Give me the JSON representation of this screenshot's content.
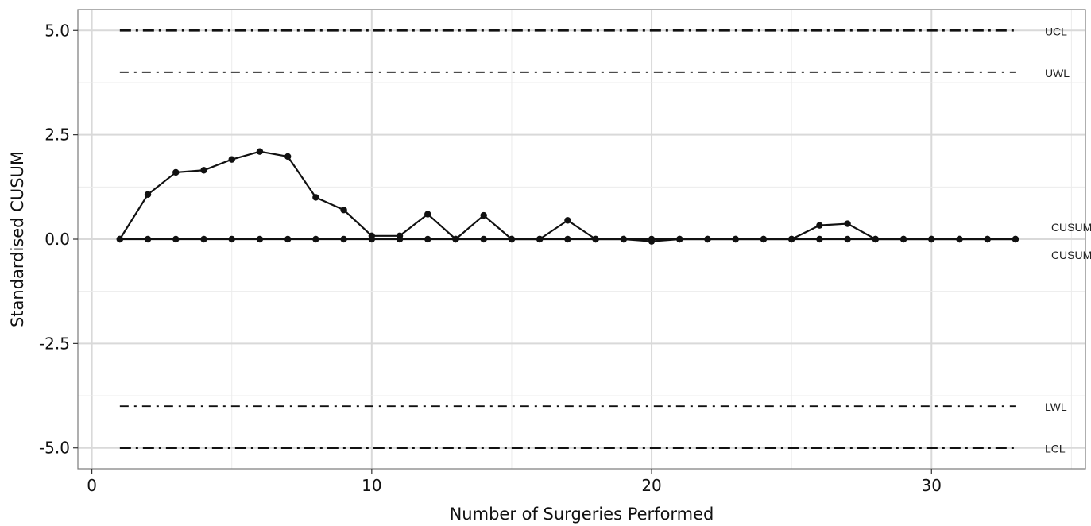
{
  "chart_data": {
    "type": "line",
    "title": "",
    "xlabel": "Number of Surgeries Performed",
    "ylabel": "Standardised CUSUM",
    "xlim": [
      -0.5,
      35.5
    ],
    "ylim": [
      -5.5,
      5.5
    ],
    "x_ticks": [
      0,
      10,
      20,
      30
    ],
    "x_tick_labels": [
      "0",
      "10",
      "20",
      "30"
    ],
    "y_ticks": [
      5,
      2.5,
      0,
      -2.5,
      -5
    ],
    "y_tick_labels": [
      "5.0",
      "2.5",
      "0.0",
      "-2.5",
      "-5.0"
    ],
    "grid": true,
    "control_limits": [
      {
        "label": "UCL",
        "value": 5,
        "style": "dashdot-heavy"
      },
      {
        "label": "UWL",
        "value": 4,
        "style": "dashdot-light"
      },
      {
        "label": "LWL",
        "value": -4,
        "style": "dashdot-light"
      },
      {
        "label": "LCL",
        "value": -5,
        "style": "dashdot-heavy"
      }
    ],
    "limit_x_range": [
      1,
      33
    ],
    "series": [
      {
        "name": "CUSUM (+)",
        "x": [
          1,
          2,
          3,
          4,
          5,
          6,
          7,
          8,
          9,
          10,
          11,
          12,
          13,
          14,
          15,
          16,
          17,
          18,
          19,
          20,
          21,
          22,
          23,
          24,
          25,
          26,
          27,
          28,
          29,
          30,
          31,
          32,
          33
        ],
        "values": [
          0,
          1.07,
          1.6,
          1.65,
          1.91,
          2.1,
          1.98,
          1.0,
          0.7,
          0.08,
          0.08,
          0.6,
          0,
          0.57,
          0,
          0,
          0.45,
          0,
          0,
          0,
          0,
          0,
          0,
          0,
          0,
          0.33,
          0.37,
          0,
          0,
          0,
          0,
          0,
          0
        ]
      },
      {
        "name": "CUSUM (-)",
        "x": [
          1,
          2,
          3,
          4,
          5,
          6,
          7,
          8,
          9,
          10,
          11,
          12,
          13,
          14,
          15,
          16,
          17,
          18,
          19,
          20,
          21,
          22,
          23,
          24,
          25,
          26,
          27,
          28,
          29,
          30,
          31,
          32,
          33
        ],
        "values": [
          0,
          0,
          0,
          0,
          0,
          0,
          0,
          0,
          0,
          0,
          0,
          0,
          0,
          0,
          0,
          0,
          0,
          0,
          0,
          -0.05,
          0,
          0,
          0,
          0,
          0,
          0,
          0,
          0,
          0,
          0,
          0,
          0,
          0
        ]
      }
    ]
  }
}
